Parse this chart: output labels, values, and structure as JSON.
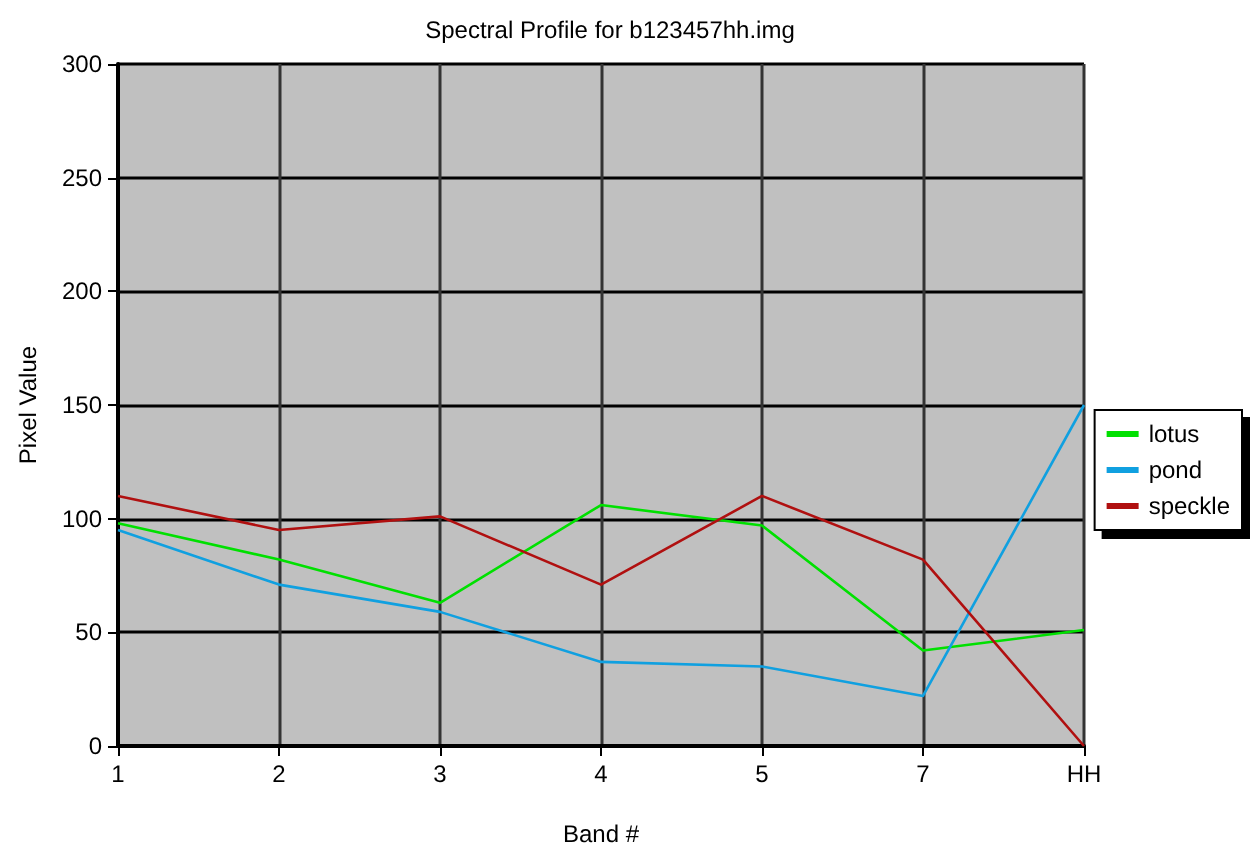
{
  "chart_data": {
    "type": "line",
    "title": "Spectral Profile for b123457hh.img",
    "xlabel": "Band #",
    "ylabel": "Pixel Value",
    "categories": [
      "1",
      "2",
      "3",
      "4",
      "5",
      "7",
      "HH"
    ],
    "series": [
      {
        "name": "lotus",
        "color": "#00e000",
        "values": [
          98,
          82,
          63,
          106,
          97,
          42,
          51
        ]
      },
      {
        "name": "pond",
        "color": "#10a0e0",
        "values": [
          95,
          71,
          59,
          37,
          35,
          22,
          150
        ]
      },
      {
        "name": "speckle",
        "color": "#b01010",
        "values": [
          110,
          95,
          101,
          71,
          110,
          82,
          0
        ]
      }
    ],
    "ylim": [
      0,
      300
    ],
    "yticks": [
      0,
      50,
      100,
      150,
      200,
      250,
      300
    ],
    "grid": true,
    "legend": "right",
    "marker": "none"
  }
}
